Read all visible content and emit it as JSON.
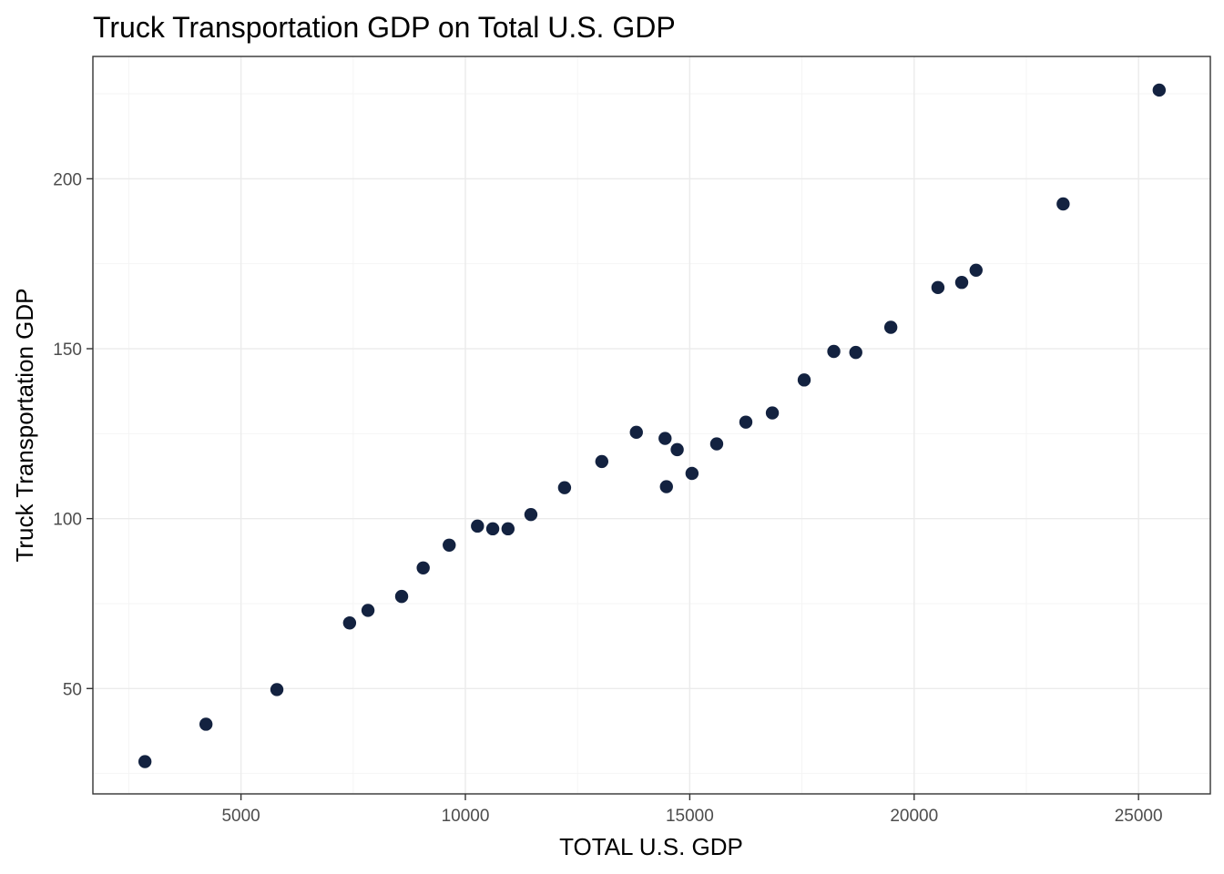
{
  "chart_data": {
    "type": "scatter",
    "title": "Truck Transportation GDP on Total U.S. GDP",
    "xlabel": "TOTAL U.S. GDP",
    "ylabel": "Truck Transportation GDP",
    "xlim": [
      1700,
      26600
    ],
    "ylim": [
      19,
      236
    ],
    "x_ticks": [
      5000,
      10000,
      15000,
      20000,
      25000
    ],
    "y_ticks": [
      50,
      100,
      150,
      200
    ],
    "x_tick_labels": [
      "5000",
      "10000",
      "15000",
      "20000",
      "25000"
    ],
    "y_tick_labels": [
      "50",
      "100",
      "150",
      "200"
    ],
    "grid": true,
    "legend": "none",
    "point_color": "#132240",
    "x": [
      2860,
      4220,
      5800,
      7420,
      7830,
      8580,
      9060,
      9640,
      10270,
      10610,
      10950,
      11460,
      12210,
      13040,
      13810,
      14450,
      14480,
      14720,
      15050,
      15600,
      16250,
      16840,
      17550,
      18210,
      18700,
      19480,
      20530,
      21060,
      21380,
      23320,
      25460
    ],
    "y": [
      28.5,
      39.5,
      49.7,
      69.3,
      73.0,
      77.1,
      85.5,
      92.2,
      97.8,
      97.0,
      97.0,
      101.2,
      109.1,
      116.8,
      125.4,
      123.6,
      109.4,
      120.3,
      113.3,
      122.0,
      128.4,
      131.1,
      140.8,
      149.2,
      148.9,
      156.3,
      168.0,
      169.5,
      173.1,
      192.6,
      226.1
    ]
  }
}
